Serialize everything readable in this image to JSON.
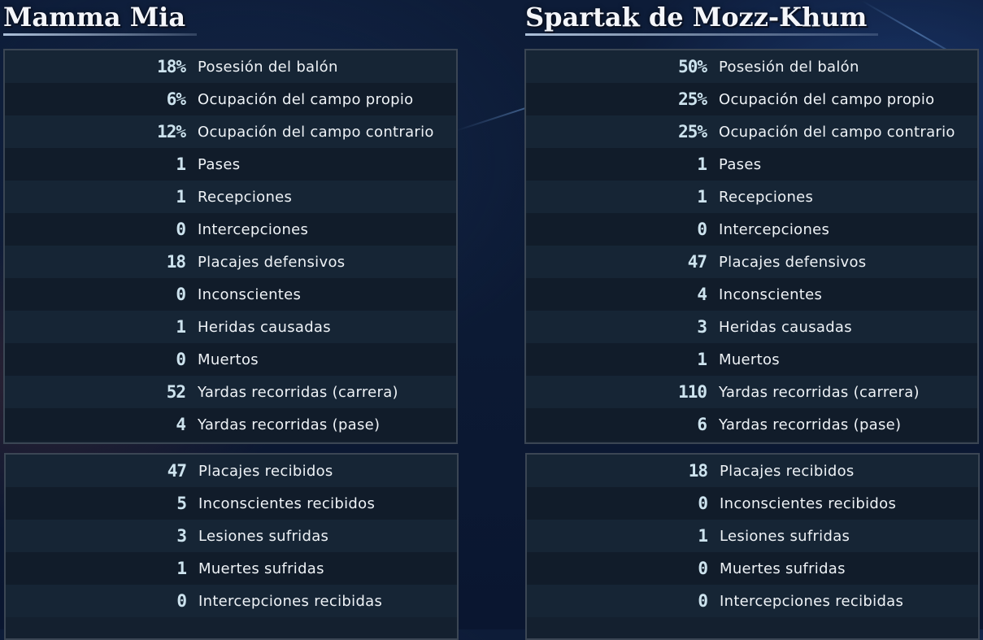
{
  "teams": [
    {
      "name": "Mamma Mia",
      "stats": [
        {
          "value": "18%",
          "label": "Posesión del balón"
        },
        {
          "value": "6%",
          "label": "Ocupación del campo propio"
        },
        {
          "value": "12%",
          "label": "Ocupación del campo contrario"
        },
        {
          "value": "1",
          "label": "Pases"
        },
        {
          "value": "1",
          "label": "Recepciones"
        },
        {
          "value": "0",
          "label": "Intercepciones"
        },
        {
          "value": "18",
          "label": "Placajes defensivos"
        },
        {
          "value": "0",
          "label": "Inconscientes"
        },
        {
          "value": "1",
          "label": "Heridas causadas"
        },
        {
          "value": "0",
          "label": "Muertos"
        },
        {
          "value": "52",
          "label": "Yardas recorridas (carrera)"
        },
        {
          "value": "4",
          "label": "Yardas recorridas (pase)"
        }
      ],
      "received": [
        {
          "value": "47",
          "label": "Placajes recibidos"
        },
        {
          "value": "5",
          "label": "Inconscientes recibidos"
        },
        {
          "value": "3",
          "label": "Lesiones sufridas"
        },
        {
          "value": "1",
          "label": "Muertes sufridas"
        },
        {
          "value": "0",
          "label": "Intercepciones recibidas"
        }
      ]
    },
    {
      "name": "Spartak de Mozz-Khum",
      "stats": [
        {
          "value": "50%",
          "label": "Posesión del balón"
        },
        {
          "value": "25%",
          "label": "Ocupación del campo propio"
        },
        {
          "value": "25%",
          "label": "Ocupación del campo contrario"
        },
        {
          "value": "1",
          "label": "Pases"
        },
        {
          "value": "1",
          "label": "Recepciones"
        },
        {
          "value": "0",
          "label": "Intercepciones"
        },
        {
          "value": "47",
          "label": "Placajes defensivos"
        },
        {
          "value": "4",
          "label": "Inconscientes"
        },
        {
          "value": "3",
          "label": "Heridas causadas"
        },
        {
          "value": "1",
          "label": "Muertos"
        },
        {
          "value": "110",
          "label": "Yardas recorridas (carrera)"
        },
        {
          "value": "6",
          "label": "Yardas recorridas (pase)"
        }
      ],
      "received": [
        {
          "value": "18",
          "label": "Placajes recibidos"
        },
        {
          "value": "0",
          "label": "Inconscientes recibidos"
        },
        {
          "value": "1",
          "label": "Lesiones sufridas"
        },
        {
          "value": "0",
          "label": "Muertes sufridas"
        },
        {
          "value": "0",
          "label": "Intercepciones recibidas"
        }
      ]
    }
  ],
  "colors": {
    "value_text": "#cde3ee",
    "label_text": "#eef2f6",
    "panel_border": "#3b4654",
    "row_light": "#162535",
    "row_dark": "#111c2a"
  }
}
